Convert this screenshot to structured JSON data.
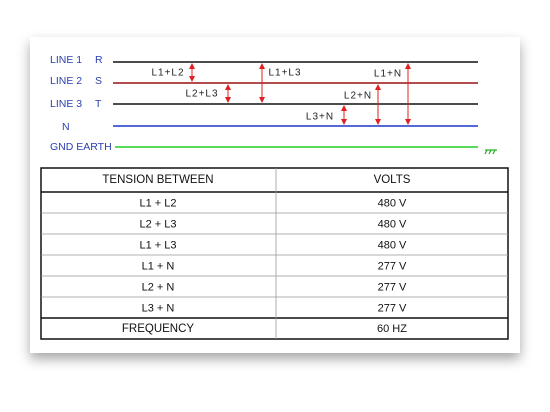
{
  "diagram": {
    "lines": [
      {
        "label": "LINE 1",
        "phase": "R"
      },
      {
        "label": "LINE 2",
        "phase": "S"
      },
      {
        "label": "LINE 3",
        "phase": "T"
      },
      {
        "phase": "N"
      },
      {
        "label": "GND EARTH"
      }
    ],
    "arrows": [
      "L1+L2",
      "L2+L3",
      "L1+L3",
      "L1+N",
      "L2+N",
      "L3+N"
    ]
  },
  "table": {
    "header": [
      "TENSION BETWEEN",
      "VOLTS"
    ],
    "rows": [
      [
        "L1 + L2",
        "480 V"
      ],
      [
        "L2 + L3",
        "480 V"
      ],
      [
        "L1 + L3",
        "480 V"
      ],
      [
        "L1 + N",
        "277 V"
      ],
      [
        "L2 + N",
        "277 V"
      ],
      [
        "L3 + N",
        "277 V"
      ]
    ],
    "footer": [
      "FREQUENCY",
      "60 HZ"
    ]
  }
}
